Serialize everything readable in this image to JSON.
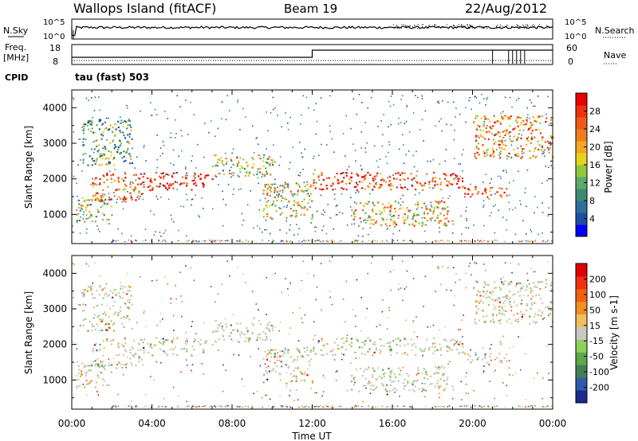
{
  "header": {
    "title": "Wallops Island (fitACF)",
    "beam": "Beam 19",
    "date": "22/Aug/2012"
  },
  "top_panels": {
    "nsky_label": "N.Sky",
    "nsearch_label": "N.Search",
    "freq_label": "Freq.",
    "freq_unit": "[MHz]",
    "nave_label": "Nave",
    "cpid_label": "CPID",
    "cpid_value": "tau (fast) 503",
    "noise_ticks_left": [
      "10^5",
      "10^0"
    ],
    "noise_ticks_right": [
      "10^5",
      "10^0"
    ],
    "freq_ticks": [
      "18",
      "8"
    ],
    "nave_ticks": [
      "60",
      "0"
    ]
  },
  "power_colorbar": {
    "label": "Power [dB]",
    "ticks": [
      "28",
      "24",
      "20",
      "16",
      "12",
      "8",
      "4"
    ],
    "colors": [
      "#0000ff",
      "#1d4fa6",
      "#2f6f9b",
      "#3d8c70",
      "#5fa96a",
      "#8fc93a",
      "#e6d41a",
      "#f5a623",
      "#f07d1a",
      "#ef5a14",
      "#f03010",
      "#e80000"
    ]
  },
  "velocity_colorbar": {
    "label": "Velocity [m s-1]",
    "ticks": [
      "200",
      "100",
      "50",
      "15",
      "-15",
      "-50",
      "-100",
      "-200"
    ],
    "colors": [
      "#1a2a8f",
      "#2f5aa8",
      "#3f7f5a",
      "#5aa84a",
      "#8fd05a",
      "#c8c8c0",
      "#f0c060",
      "#f09020",
      "#f06010",
      "#f03010",
      "#e00000"
    ]
  },
  "chart_data": [
    {
      "type": "heatmap",
      "title": "Power",
      "xlabel": "Time UT",
      "ylabel": "Slant Range [km]",
      "x_ticks": [
        "00:00",
        "04:00",
        "08:00",
        "12:00",
        "16:00",
        "20:00",
        "00:00"
      ],
      "y_ticks": [
        1000,
        2000,
        3000,
        4000
      ],
      "xlim_hours": [
        0,
        24
      ],
      "ylim_km": [
        180,
        4500
      ],
      "colorbar": "Power [dB]",
      "clim_db": [
        0,
        30
      ],
      "bands": [
        {
          "t0": 0.2,
          "t1": 2.0,
          "r0": 800,
          "r1": 1500,
          "level": 0.45
        },
        {
          "t0": 1.0,
          "t1": 3.5,
          "r0": 1400,
          "r1": 2200,
          "level": 0.75
        },
        {
          "t0": 3.5,
          "t1": 7.0,
          "r0": 1700,
          "r1": 2200,
          "level": 0.95
        },
        {
          "t0": 7.0,
          "t1": 10.0,
          "r0": 2100,
          "r1": 2700,
          "level": 0.5
        },
        {
          "t0": 9.5,
          "t1": 12.0,
          "r0": 900,
          "r1": 1900,
          "level": 0.55
        },
        {
          "t0": 12.0,
          "t1": 19.5,
          "r0": 1700,
          "r1": 2200,
          "level": 0.85
        },
        {
          "t0": 14.0,
          "t1": 19.0,
          "r0": 700,
          "r1": 1400,
          "level": 0.6
        },
        {
          "t0": 19.5,
          "t1": 22.0,
          "r0": 1500,
          "r1": 1800,
          "level": 0.8
        },
        {
          "t0": 20.0,
          "t1": 24.0,
          "r0": 2600,
          "r1": 3800,
          "level": 0.7
        },
        {
          "t0": 0.5,
          "t1": 3.0,
          "r0": 2400,
          "r1": 3700,
          "level": 0.35
        }
      ]
    },
    {
      "type": "heatmap",
      "title": "Velocity",
      "xlabel": "Time UT",
      "ylabel": "Slant Range [km]",
      "x_ticks": [
        "00:00",
        "04:00",
        "08:00",
        "12:00",
        "16:00",
        "20:00",
        "00:00"
      ],
      "y_ticks": [
        1000,
        2000,
        3000,
        4000
      ],
      "xlim_hours": [
        0,
        24
      ],
      "ylim_km": [
        180,
        4500
      ],
      "colorbar": "Velocity [m s-1]",
      "clim_ms": [
        -200,
        200
      ]
    }
  ],
  "x_axis": {
    "label": "Time UT",
    "ticks": [
      "00:00",
      "04:00",
      "08:00",
      "12:00",
      "16:00",
      "20:00",
      "00:00"
    ]
  },
  "y_axis": {
    "label": "Slant Range [km]",
    "ticks": [
      "4000",
      "3000",
      "2000",
      "1000"
    ]
  }
}
